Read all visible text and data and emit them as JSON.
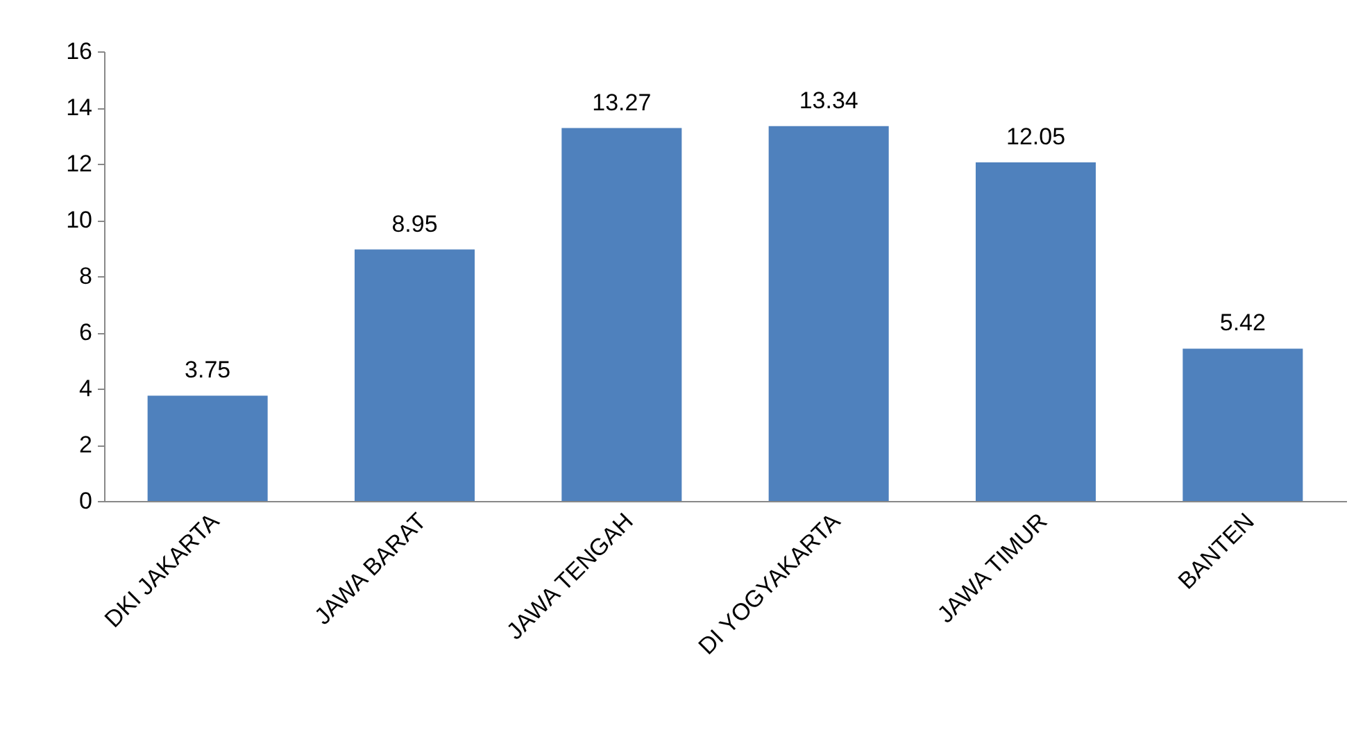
{
  "chart_data": {
    "type": "bar",
    "categories": [
      "DKI JAKARTA",
      "JAWA BARAT",
      "JAWA TENGAH",
      "DI YOGYAKARTA",
      "JAWA TIMUR",
      "BANTEN"
    ],
    "values": [
      3.75,
      8.95,
      13.27,
      13.34,
      12.05,
      5.42
    ],
    "color": "#4f81bd",
    "ylim": [
      0,
      16
    ],
    "yticks": [
      0,
      2,
      4,
      6,
      8,
      10,
      12,
      14,
      16
    ],
    "data_labels": true
  }
}
